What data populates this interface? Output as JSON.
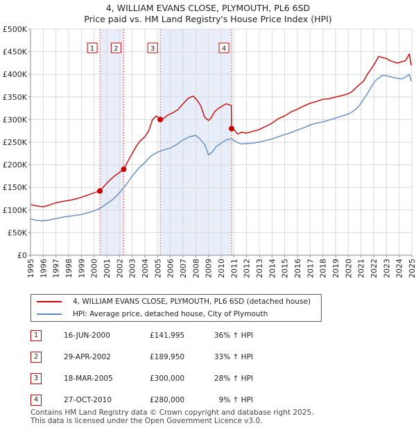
{
  "title_line1": "4, WILLIAM EVANS CLOSE, PLYMOUTH, PL6 6SD",
  "title_line2": "Price paid vs. HM Land Registry's House Price Index (HPI)",
  "legend": [
    {
      "label": "4, WILLIAM EVANS CLOSE, PLYMOUTH, PL6 6SD (detached house)",
      "color": "#cc0000"
    },
    {
      "label": "HPI: Average price, detached house, City of Plymouth",
      "color": "#5b8ac6"
    }
  ],
  "transactions": [
    {
      "num": "1",
      "date": "16-JUN-2000",
      "price": "£141,995",
      "hpi": "36% ↑ HPI"
    },
    {
      "num": "2",
      "date": "29-APR-2002",
      "price": "£189,950",
      "hpi": "33% ↑ HPI"
    },
    {
      "num": "3",
      "date": "18-MAR-2005",
      "price": "£300,000",
      "hpi": "28% ↑ HPI"
    },
    {
      "num": "4",
      "date": "27-OCT-2010",
      "price": "£280,000",
      "hpi": "9% ↑ HPI"
    }
  ],
  "footer_line1": "Contains HM Land Registry data © Crown copyright and database right 2025.",
  "footer_line2": "This data is licensed under the Open Government Licence v3.0.",
  "chart_data": {
    "type": "line",
    "xlim": [
      1995,
      2025
    ],
    "ylim": [
      0,
      500000
    ],
    "x_ticks": [
      1995,
      1996,
      1997,
      1998,
      1999,
      2000,
      2001,
      2002,
      2003,
      2004,
      2005,
      2006,
      2007,
      2008,
      2009,
      2010,
      2011,
      2012,
      2013,
      2014,
      2015,
      2016,
      2017,
      2018,
      2019,
      2020,
      2021,
      2022,
      2023,
      2024,
      2025
    ],
    "y_ticks": [
      {
        "value": 0,
        "label": "£0"
      },
      {
        "value": 50000,
        "label": "£50K"
      },
      {
        "value": 100000,
        "label": "£100K"
      },
      {
        "value": 150000,
        "label": "£150K"
      },
      {
        "value": 200000,
        "label": "£200K"
      },
      {
        "value": 250000,
        "label": "£250K"
      },
      {
        "value": 300000,
        "label": "£300K"
      },
      {
        "value": 350000,
        "label": "£350K"
      },
      {
        "value": 400000,
        "label": "£400K"
      },
      {
        "value": 450000,
        "label": "£450K"
      },
      {
        "value": 500000,
        "label": "£500K"
      }
    ],
    "shaded_periods": [
      [
        2000.46,
        2002.33
      ],
      [
        2005.21,
        2010.82
      ]
    ],
    "markers": [
      {
        "label": "1",
        "x": 2000.46,
        "y": 141995
      },
      {
        "label": "2",
        "x": 2002.33,
        "y": 189950
      },
      {
        "label": "3",
        "x": 2005.21,
        "y": 300000
      },
      {
        "label": "4",
        "x": 2010.82,
        "y": 280000
      }
    ],
    "series": [
      {
        "name": "4, WILLIAM EVANS CLOSE, PLYMOUTH, PL6 6SD (detached house)",
        "color": "#cc0000",
        "x": [
          1995.0,
          1995.5,
          1996.0,
          1996.5,
          1997.0,
          1997.5,
          1998.0,
          1998.5,
          1999.0,
          1999.5,
          2000.0,
          2000.46,
          2000.8,
          2001.2,
          2001.6,
          2002.0,
          2002.33,
          2002.7,
          2003.0,
          2003.3,
          2003.6,
          2004.0,
          2004.3,
          2004.6,
          2004.9,
          2005.21,
          2005.5,
          2005.8,
          2006.2,
          2006.6,
          2007.0,
          2007.4,
          2007.8,
          2008.1,
          2008.4,
          2008.7,
          2009.0,
          2009.2,
          2009.5,
          2009.8,
          2010.1,
          2010.4,
          2010.7,
          2010.8,
          2010.82,
          2011.0,
          2011.3,
          2011.6,
          2012.0,
          2012.5,
          2013.0,
          2013.5,
          2014.0,
          2014.5,
          2015.0,
          2015.5,
          2016.0,
          2016.5,
          2017.0,
          2017.5,
          2018.0,
          2018.5,
          2019.0,
          2019.5,
          2020.0,
          2020.3,
          2020.6,
          2020.9,
          2021.2,
          2021.5,
          2021.8,
          2022.1,
          2022.4,
          2022.7,
          2023.0,
          2023.3,
          2023.6,
          2023.9,
          2024.2,
          2024.5,
          2024.8,
          2024.95
        ],
        "y": [
          112000,
          109000,
          107000,
          111000,
          116000,
          119000,
          121000,
          124000,
          128000,
          133000,
          138000,
          141995,
          153000,
          165000,
          175000,
          183000,
          189950,
          210000,
          225000,
          240000,
          252000,
          262000,
          275000,
          300000,
          308000,
          300000,
          303000,
          310000,
          315000,
          322000,
          335000,
          347000,
          352000,
          343000,
          330000,
          305000,
          298000,
          303000,
          318000,
          325000,
          330000,
          335000,
          332000,
          330000,
          280000,
          278000,
          268000,
          272000,
          270000,
          274000,
          278000,
          285000,
          292000,
          302000,
          308000,
          317000,
          323000,
          330000,
          336000,
          340000,
          345000,
          346000,
          350000,
          353000,
          357000,
          362000,
          370000,
          378000,
          385000,
          400000,
          412000,
          425000,
          440000,
          437000,
          435000,
          430000,
          427000,
          425000,
          428000,
          430000,
          445000,
          420000
        ]
      },
      {
        "name": "HPI: Average price, detached house, City of Plymouth",
        "color": "#5b8ac6",
        "x": [
          1995.0,
          1995.5,
          1996.0,
          1996.5,
          1997.0,
          1997.5,
          1998.0,
          1998.5,
          1999.0,
          1999.5,
          2000.0,
          2000.5,
          2001.0,
          2001.5,
          2002.0,
          2002.5,
          2003.0,
          2003.5,
          2004.0,
          2004.5,
          2005.0,
          2005.5,
          2006.0,
          2006.5,
          2007.0,
          2007.5,
          2008.0,
          2008.3,
          2008.7,
          2009.0,
          2009.3,
          2009.6,
          2010.0,
          2010.4,
          2010.8,
          2011.2,
          2011.6,
          2012.0,
          2012.5,
          2013.0,
          2013.5,
          2014.0,
          2014.5,
          2015.0,
          2015.5,
          2016.0,
          2016.5,
          2017.0,
          2017.5,
          2018.0,
          2018.5,
          2019.0,
          2019.5,
          2020.0,
          2020.3,
          2020.6,
          2020.9,
          2021.2,
          2021.5,
          2021.8,
          2022.1,
          2022.4,
          2022.7,
          2023.0,
          2023.3,
          2023.6,
          2023.9,
          2024.2,
          2024.5,
          2024.8,
          2024.95
        ],
        "y": [
          80000,
          77000,
          76000,
          78000,
          81000,
          84000,
          86000,
          88000,
          90000,
          94000,
          98000,
          104000,
          114000,
          124000,
          138000,
          155000,
          175000,
          192000,
          205000,
          220000,
          228000,
          233000,
          237000,
          245000,
          255000,
          262000,
          265000,
          258000,
          245000,
          222000,
          228000,
          240000,
          248000,
          255000,
          258000,
          250000,
          246000,
          247000,
          248000,
          250000,
          254000,
          257000,
          262000,
          267000,
          271000,
          277000,
          282000,
          288000,
          292000,
          295000,
          299000,
          303000,
          308000,
          312000,
          317000,
          323000,
          332000,
          345000,
          357000,
          372000,
          385000,
          392000,
          398000,
          397000,
          395000,
          393000,
          391000,
          390000,
          394000,
          400000,
          385000
        ]
      }
    ]
  }
}
